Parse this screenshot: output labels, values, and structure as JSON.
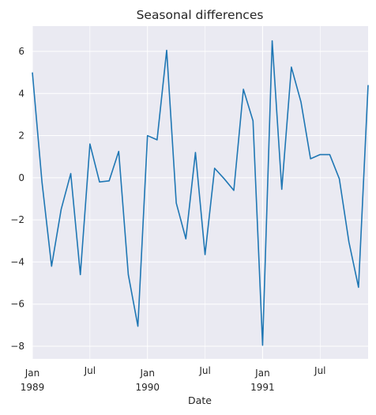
{
  "chart_data": {
    "type": "line",
    "title": "Seasonal differences",
    "xlabel": "Date",
    "ylabel": "",
    "ylim": [
      -8.6,
      7.2
    ],
    "yticks": [
      -8,
      -6,
      -4,
      -2,
      0,
      2,
      4,
      6
    ],
    "grid": true,
    "colors": {
      "line": "#1f77b4",
      "plot_bg": "#eaeaf2",
      "grid": "#ffffff"
    },
    "x_start": "1989-01",
    "x_end": "1991-12",
    "xticks": [
      {
        "month": "1989-01",
        "label": "Jan",
        "sublabel": "1989"
      },
      {
        "month": "1989-07",
        "label": "Jul",
        "sublabel": ""
      },
      {
        "month": "1990-01",
        "label": "Jan",
        "sublabel": "1990"
      },
      {
        "month": "1990-07",
        "label": "Jul",
        "sublabel": ""
      },
      {
        "month": "1991-01",
        "label": "Jan",
        "sublabel": "1991"
      },
      {
        "month": "1991-07",
        "label": "Jul",
        "sublabel": ""
      }
    ],
    "series": [
      {
        "x": [
          "1989-01",
          "1989-02",
          "1989-03",
          "1989-04",
          "1989-05",
          "1989-06",
          "1989-07",
          "1989-08",
          "1989-09",
          "1989-10",
          "1989-11",
          "1989-12",
          "1990-01",
          "1990-02",
          "1990-03",
          "1990-04",
          "1990-05",
          "1990-06",
          "1990-07",
          "1990-08",
          "1990-09",
          "1990-10",
          "1990-11",
          "1990-12",
          "1991-01",
          "1991-02",
          "1991-03",
          "1991-04",
          "1991-05",
          "1991-06",
          "1991-07",
          "1991-08",
          "1991-09",
          "1991-10",
          "1991-11",
          "1991-12"
        ],
        "values": [
          5.0,
          -0.2,
          -4.2,
          -1.5,
          0.2,
          -4.6,
          1.6,
          -0.2,
          -0.15,
          1.25,
          -4.6,
          -7.05,
          2.0,
          1.8,
          6.05,
          -1.2,
          -2.9,
          1.2,
          -3.65,
          0.45,
          -0.05,
          -0.6,
          4.2,
          2.7,
          -7.95,
          6.5,
          -0.55,
          5.25,
          3.6,
          0.9,
          1.1,
          1.1,
          -0.05,
          -3.05,
          -5.2,
          4.4
        ]
      }
    ]
  }
}
